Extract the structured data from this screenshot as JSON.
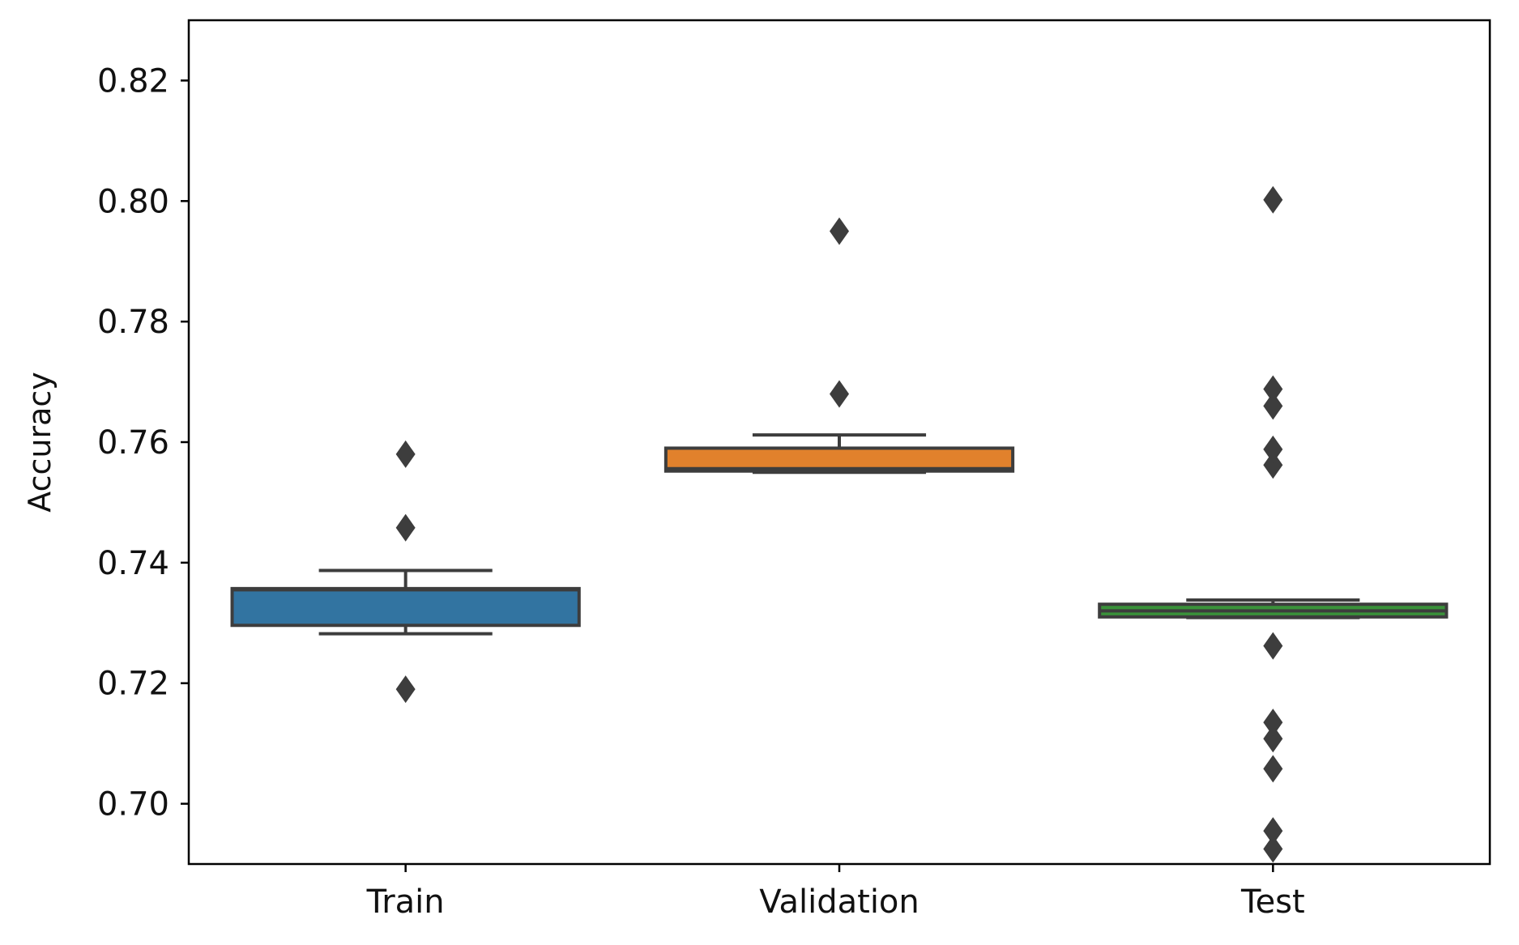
{
  "chart_data": {
    "type": "box",
    "title": "",
    "xlabel": "",
    "ylabel": "Accuracy",
    "ylim": [
      0.69,
      0.83
    ],
    "yticks": [
      0.7,
      0.72,
      0.74,
      0.76,
      0.78,
      0.8,
      0.82
    ],
    "ytick_labels": [
      "0.70",
      "0.72",
      "0.74",
      "0.76",
      "0.78",
      "0.80",
      "0.82"
    ],
    "grid": false,
    "categories": [
      "Train",
      "Validation",
      "Test"
    ],
    "series": [
      {
        "name": "Train",
        "color": "#3274a1",
        "whisker_low": 0.7282,
        "q1": 0.7296,
        "median": 0.7355,
        "q3": 0.7357,
        "whisker_high": 0.7387,
        "outliers": [
          0.719,
          0.7458,
          0.758
        ]
      },
      {
        "name": "Validation",
        "color": "#e1812c",
        "whisker_low": 0.755,
        "q1": 0.7552,
        "median": 0.7556,
        "q3": 0.759,
        "whisker_high": 0.7612,
        "outliers": [
          0.768,
          0.795
        ]
      },
      {
        "name": "Test",
        "color": "#3a923a",
        "whisker_low": 0.7309,
        "q1": 0.731,
        "median": 0.732,
        "q3": 0.7331,
        "whisker_high": 0.7338,
        "outliers": [
          0.6925,
          0.6955,
          0.7058,
          0.7108,
          0.7135,
          0.7262,
          0.7562,
          0.7588,
          0.766,
          0.7688,
          0.8002
        ]
      }
    ]
  },
  "colors": {
    "outline": "#3d3d3d",
    "axis": "#000000",
    "background": "#ffffff"
  }
}
